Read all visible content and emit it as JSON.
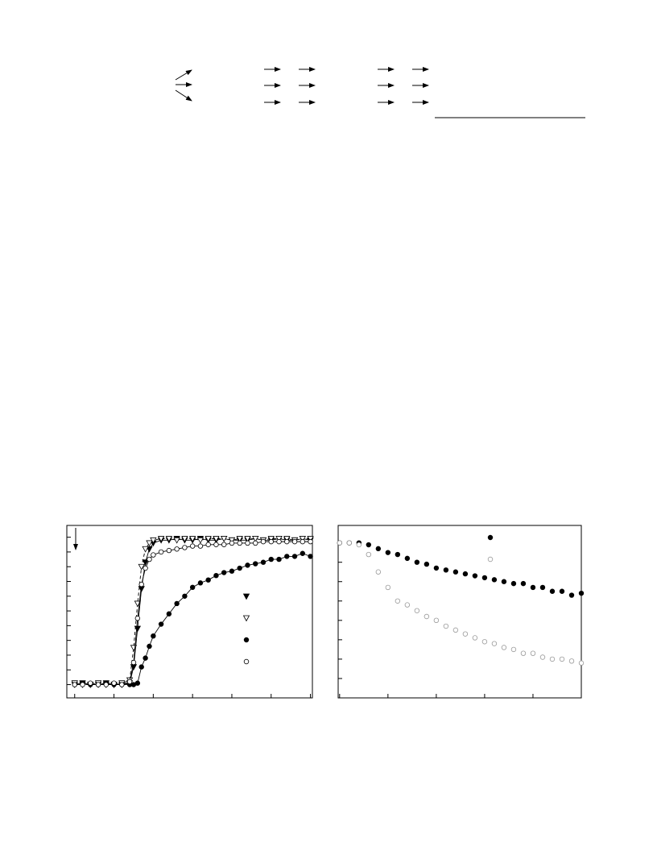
{
  "chart_data": [
    {
      "type": "scatter",
      "x": [
        0,
        0.2,
        0.4,
        0.6,
        0.8,
        1.0,
        1.2,
        1.4,
        1.5,
        1.6,
        1.7,
        1.8,
        1.9,
        2.0,
        2.2,
        2.4,
        2.6,
        2.8,
        3.0,
        3.2,
        3.4,
        3.6,
        3.8,
        4.0,
        4.2,
        4.4,
        4.6,
        4.8,
        5.0,
        5.2,
        5.4,
        5.6,
        5.8,
        6.0
      ],
      "xlim": [
        -0.2,
        6.05
      ],
      "ylim": [
        -0.9,
        10.8
      ],
      "xticks": [
        0,
        1,
        2,
        3,
        4,
        5,
        6
      ],
      "yticks": [
        0,
        1,
        2,
        3,
        4,
        5,
        6,
        7,
        8,
        9,
        10
      ],
      "series": [
        {
          "marker": "triangle-down",
          "fill": "filled",
          "color": "#000000",
          "line": "solid",
          "values": [
            0,
            0.1,
            0,
            0,
            0.1,
            0,
            0,
            0.1,
            1.2,
            3.8,
            6.5,
            8.3,
            9.2,
            9.6,
            9.8,
            9.8,
            9.9,
            9.8,
            9.8,
            9.9,
            9.8,
            9.8,
            9.9,
            9.8,
            9.8,
            9.8,
            9.9,
            9.8,
            9.8,
            9.9,
            9.8,
            9.8,
            9.9,
            9.8
          ]
        },
        {
          "marker": "triangle-down",
          "fill": "open",
          "color": "#000000",
          "line": "dashed",
          "values": [
            0.1,
            0,
            0,
            0.1,
            0,
            0,
            0.1,
            0.3,
            2.5,
            5.5,
            8.0,
            9.2,
            9.6,
            9.8,
            9.9,
            9.9,
            9.8,
            9.9,
            9.9,
            9.8,
            9.9,
            9.9,
            9.9,
            9.8,
            9.9,
            9.9,
            9.9,
            9.8,
            9.9,
            9.9,
            9.9,
            9.8,
            9.9,
            9.9
          ]
        },
        {
          "marker": "circle",
          "fill": "filled",
          "color": "#000000",
          "line": "solid",
          "values": [
            0,
            0.1,
            0,
            0,
            0.1,
            0,
            0,
            0,
            0,
            0.1,
            1.2,
            1.8,
            2.6,
            3.3,
            4.1,
            4.8,
            5.5,
            6.0,
            6.6,
            6.9,
            7.1,
            7.4,
            7.6,
            7.7,
            7.9,
            8.1,
            8.2,
            8.3,
            8.5,
            8.5,
            8.7,
            8.7,
            8.9,
            8.7
          ]
        },
        {
          "marker": "circle",
          "fill": "open",
          "color": "#000000",
          "line": "solid",
          "values": [
            0,
            0,
            0.1,
            0,
            0,
            0.1,
            0,
            0.2,
            1.5,
            4.5,
            6.8,
            7.9,
            8.5,
            8.8,
            9.0,
            9.1,
            9.2,
            9.3,
            9.4,
            9.4,
            9.5,
            9.5,
            9.5,
            9.6,
            9.6,
            9.6,
            9.6,
            9.7,
            9.7,
            9.7,
            9.7,
            9.7,
            9.7,
            9.7
          ]
        }
      ]
    },
    {
      "type": "scatter",
      "x": [
        0,
        0.2,
        0.4,
        0.6,
        0.8,
        1.0,
        1.2,
        1.4,
        1.6,
        1.8,
        2.0,
        2.2,
        2.4,
        2.6,
        2.8,
        3.0,
        3.2,
        3.4,
        3.6,
        3.8,
        4.0,
        4.2,
        4.4,
        4.6,
        4.8,
        5.0
      ],
      "xlim": [
        -0.03,
        5.0
      ],
      "ylim": [
        -1.0,
        7.9
      ],
      "xticks": [
        0,
        1,
        2,
        3,
        4,
        5
      ],
      "yticks": [
        0,
        1,
        2,
        3,
        4,
        5,
        6,
        7
      ],
      "series": [
        {
          "marker": "circle",
          "fill": "filled",
          "color": "#000000",
          "values": [
            7.0,
            7.0,
            7.0,
            6.9,
            6.7,
            6.5,
            6.4,
            6.2,
            6.0,
            5.9,
            5.7,
            5.6,
            5.5,
            5.4,
            5.3,
            5.2,
            5.1,
            5.0,
            4.9,
            4.9,
            4.7,
            4.7,
            4.5,
            4.5,
            4.3,
            4.4
          ]
        },
        {
          "marker": "circle",
          "fill": "open",
          "color": "#999999",
          "values": [
            7.0,
            7.0,
            6.9,
            6.4,
            5.5,
            4.7,
            4.0,
            3.8,
            3.5,
            3.2,
            3.0,
            2.7,
            2.5,
            2.3,
            2.1,
            1.9,
            1.8,
            1.6,
            1.5,
            1.3,
            1.3,
            1.1,
            1.0,
            1.0,
            0.9,
            0.8
          ]
        }
      ]
    }
  ]
}
